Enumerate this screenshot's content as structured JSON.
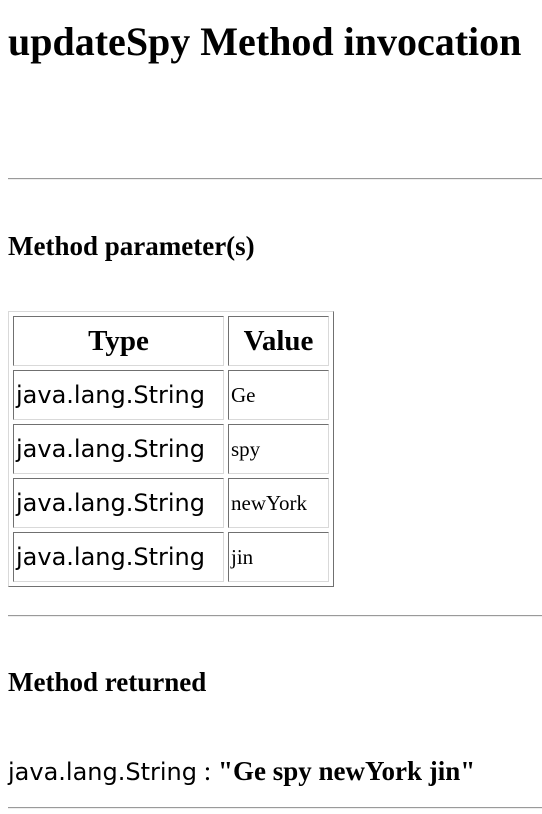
{
  "page": {
    "title": "updateSpy Method invocation"
  },
  "parameters": {
    "heading": "Method parameter(s)",
    "columns": [
      "Type",
      "Value"
    ],
    "rows": [
      {
        "type": "java.lang.String",
        "value": "Ge"
      },
      {
        "type": "java.lang.String",
        "value": "spy"
      },
      {
        "type": "java.lang.String",
        "value": "newYork"
      },
      {
        "type": "java.lang.String",
        "value": "jin"
      }
    ]
  },
  "returned": {
    "heading": "Method returned",
    "type": "java.lang.String",
    "separator": " : ",
    "value": "\"Ge spy newYork jin\""
  }
}
